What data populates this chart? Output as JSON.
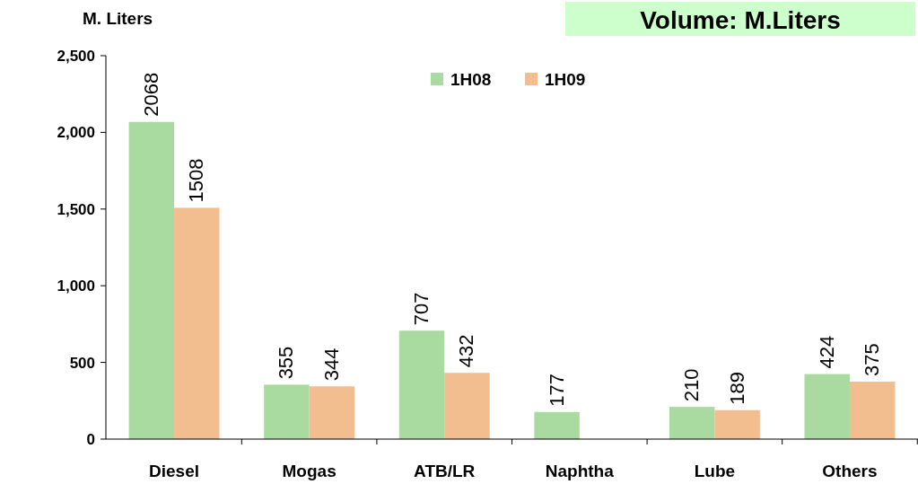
{
  "chart_data": {
    "type": "bar",
    "title": "Volume: M.Liters",
    "ylabel": "M. Liters",
    "categories": [
      "Diesel",
      "Mogas",
      "ATB/LR",
      "Naphtha",
      "Lube",
      "Others"
    ],
    "series": [
      {
        "name": "1H08",
        "color": "#a9dba0",
        "values": [
          2068,
          355,
          707,
          177,
          210,
          424
        ]
      },
      {
        "name": "1H09",
        "color": "#f2bd8f",
        "values": [
          1508,
          344,
          432,
          null,
          189,
          375
        ]
      }
    ],
    "ylim": [
      0,
      2500
    ],
    "yticks": [
      {
        "value": 0,
        "label": "0"
      },
      {
        "value": 500,
        "label": "500"
      },
      {
        "value": 1000,
        "label": "1,000"
      },
      {
        "value": 1500,
        "label": "1,500"
      },
      {
        "value": 2000,
        "label": "2,000"
      },
      {
        "value": 2500,
        "label": "2,500"
      }
    ],
    "data_labels": true,
    "legend": "top",
    "grid": false
  }
}
